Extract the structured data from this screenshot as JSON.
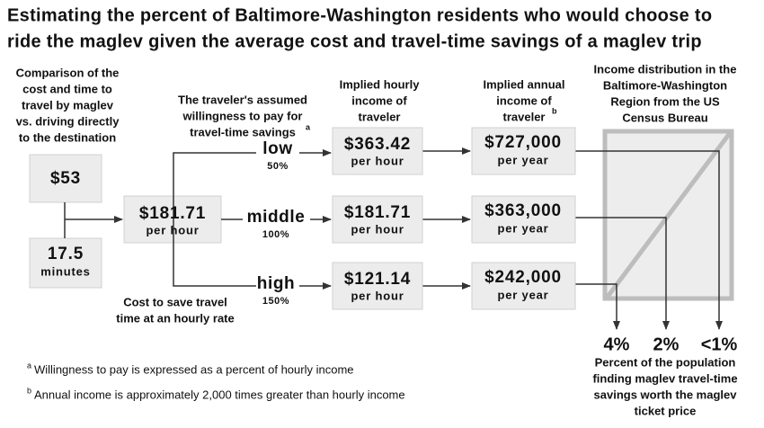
{
  "title": [
    "Estimating the percent of Baltimore-Washington residents who would choose to",
    "ride the maglev given the average cost and travel-time savings of a maglev trip"
  ],
  "inputs": {
    "header": [
      "Comparison of the",
      "cost and time to",
      "travel by maglev",
      "vs. driving directly",
      "to the destination"
    ],
    "cost": "$53",
    "time": {
      "value": "17.5",
      "unit": "minutes"
    }
  },
  "hourly_cost": {
    "value": "$181.71",
    "unit": "per hour",
    "caption": [
      "Cost to save travel",
      "time at an hourly rate"
    ]
  },
  "willingness": {
    "header": [
      "The traveler's assumed",
      "willingness to pay for",
      "travel-time savings"
    ],
    "note_marker": "a",
    "levels": [
      {
        "name": "low",
        "percent": "50%"
      },
      {
        "name": "middle",
        "percent": "100%"
      },
      {
        "name": "high",
        "percent": "150%"
      }
    ]
  },
  "hourly_income": {
    "header": [
      "Implied hourly",
      "income of",
      "traveler"
    ],
    "values": [
      {
        "value": "$363.42",
        "unit": "per hour"
      },
      {
        "value": "$181.71",
        "unit": "per hour"
      },
      {
        "value": "$121.14",
        "unit": "per hour"
      }
    ]
  },
  "annual_income": {
    "header": [
      "Implied annual",
      "income of",
      "traveler"
    ],
    "note_marker": "b",
    "values": [
      {
        "value": "$727,000",
        "unit": "per year"
      },
      {
        "value": "$363,000",
        "unit": "per year"
      },
      {
        "value": "$242,000",
        "unit": "per year"
      }
    ]
  },
  "distribution": {
    "header": [
      "Income distribution in the",
      "Baltimore-Washington",
      "Region from the US",
      "Census Bureau"
    ],
    "results": [
      "4%",
      "2%",
      "<1%"
    ],
    "caption": [
      "Percent of the population",
      "finding maglev travel-time",
      "savings worth the maglev",
      "ticket price"
    ]
  },
  "footnotes": [
    {
      "marker": "a",
      "text": "Willingness to pay is expressed as a percent of hourly income"
    },
    {
      "marker": "b",
      "text": "Annual income is approximately 2,000 times greater than hourly income"
    }
  ]
}
